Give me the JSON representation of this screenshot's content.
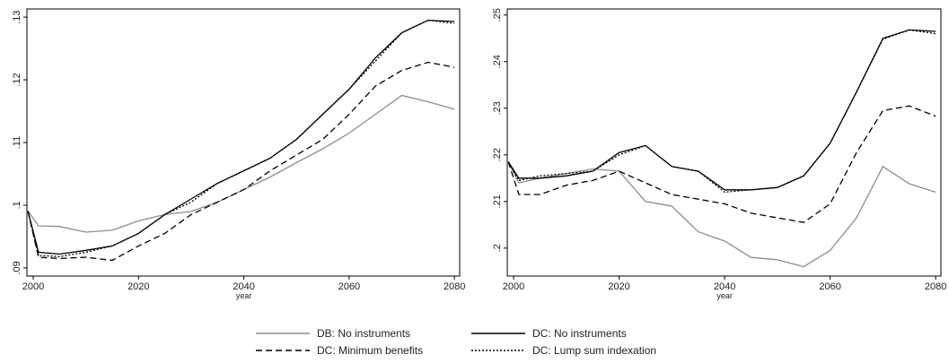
{
  "chart_data": [
    {
      "type": "line",
      "xlabel": "year",
      "legend": "bottom",
      "x": [
        1999,
        2001,
        2005,
        2010,
        2015,
        2020,
        2025,
        2030,
        2035,
        2040,
        2045,
        2050,
        2055,
        2060,
        2065,
        2070,
        2075,
        2080
      ],
      "xlim": [
        1998.8,
        2081
      ],
      "xticks": [
        2000,
        2020,
        2040,
        2060,
        2080
      ],
      "ylim": [
        0.0887,
        0.1313
      ],
      "yticks": [
        {
          "value": 0.09,
          "label": ".09"
        },
        {
          "value": 0.1,
          "label": ".1"
        },
        {
          "value": 0.11,
          "label": ".11"
        },
        {
          "value": 0.12,
          "label": ".12"
        },
        {
          "value": 0.13,
          "label": ".13"
        }
      ],
      "series": [
        {
          "name": "DB: No instruments",
          "color": "#8c8c8c",
          "line_style": "solid",
          "values": [
            0.0991,
            0.0967,
            0.0966,
            0.0957,
            0.096,
            0.0975,
            0.0985,
            0.099,
            0.1005,
            0.1025,
            0.1045,
            0.1068,
            0.109,
            0.1115,
            0.1145,
            0.1175,
            0.1165,
            0.1153
          ]
        },
        {
          "name": "DC: No instruments",
          "color": "#000000",
          "line_style": "solid",
          "values": [
            0.099,
            0.0925,
            0.0922,
            0.0928,
            0.0935,
            0.0955,
            0.0985,
            0.101,
            0.1035,
            0.1055,
            0.1075,
            0.1105,
            0.1145,
            0.1185,
            0.1235,
            0.1275,
            0.1295,
            0.1293
          ]
        },
        {
          "name": "DC: Minimum benefits",
          "color": "#000000",
          "line_style": "dashed",
          "values": [
            0.099,
            0.0917,
            0.0915,
            0.0917,
            0.0912,
            0.0935,
            0.0955,
            0.0985,
            0.1005,
            0.1025,
            0.1055,
            0.108,
            0.1105,
            0.1145,
            0.119,
            0.1215,
            0.1228,
            0.122
          ]
        },
        {
          "name": "DC: Lump sum indexation",
          "color": "#000000",
          "line_style": "dotted",
          "values": [
            0.099,
            0.092,
            0.0918,
            0.0925,
            0.0935,
            0.0955,
            0.0985,
            0.1005,
            0.1035,
            0.1055,
            0.1075,
            0.1105,
            0.1145,
            0.1185,
            0.123,
            0.1275,
            0.1295,
            0.129
          ]
        }
      ]
    },
    {
      "type": "line",
      "xlabel": "year",
      "x": [
        1999,
        2001,
        2005,
        2010,
        2015,
        2020,
        2025,
        2030,
        2035,
        2040,
        2045,
        2050,
        2055,
        2060,
        2065,
        2070,
        2075,
        2080
      ],
      "xlim": [
        1998.8,
        2081
      ],
      "xticks": [
        2000,
        2020,
        2040,
        2060,
        2080
      ],
      "ylim": [
        0.194,
        0.2513
      ],
      "yticks": [
        {
          "value": 0.2,
          "label": ".2"
        },
        {
          "value": 0.21,
          "label": ".21"
        },
        {
          "value": 0.22,
          "label": ".22"
        },
        {
          "value": 0.23,
          "label": ".23"
        },
        {
          "value": 0.24,
          "label": ".24"
        },
        {
          "value": 0.25,
          "label": ".25"
        }
      ],
      "series": [
        {
          "name": "DB: No instruments",
          "color": "#8c8c8c",
          "line_style": "solid",
          "values": [
            0.2185,
            0.214,
            0.215,
            0.216,
            0.217,
            0.2165,
            0.21,
            0.209,
            0.2035,
            0.2015,
            0.198,
            0.1975,
            0.196,
            0.1995,
            0.2065,
            0.2175,
            0.2138,
            0.212
          ]
        },
        {
          "name": "DC: No instruments",
          "color": "#000000",
          "line_style": "solid",
          "values": [
            0.2185,
            0.215,
            0.215,
            0.2155,
            0.2165,
            0.2205,
            0.222,
            0.2175,
            0.2165,
            0.2125,
            0.2125,
            0.213,
            0.2155,
            0.2225,
            0.2335,
            0.245,
            0.2468,
            0.2465
          ]
        },
        {
          "name": "DC: Minimum benefits",
          "color": "#000000",
          "line_style": "dashed",
          "values": [
            0.2185,
            0.2115,
            0.2115,
            0.2135,
            0.2145,
            0.2165,
            0.214,
            0.2115,
            0.2105,
            0.2095,
            0.2075,
            0.2065,
            0.2055,
            0.2095,
            0.2205,
            0.2295,
            0.2305,
            0.2283
          ]
        },
        {
          "name": "DC: Lump sum indexation",
          "color": "#000000",
          "line_style": "dotted",
          "values": [
            0.2185,
            0.2145,
            0.2155,
            0.216,
            0.2165,
            0.22,
            0.222,
            0.2175,
            0.2165,
            0.212,
            0.2125,
            0.213,
            0.2155,
            0.2225,
            0.2335,
            0.2448,
            0.2468,
            0.246
          ]
        }
      ]
    }
  ]
}
